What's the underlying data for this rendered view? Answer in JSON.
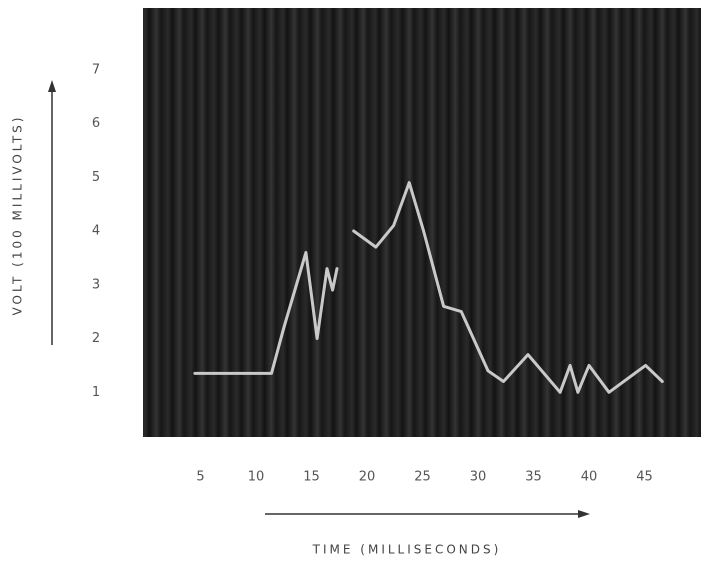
{
  "chart_data": {
    "type": "line",
    "ylabel": "VOLT (100 MILLIVOLTS)",
    "xlabel": "TIME (MILLISECONDS)",
    "x": [
      4.5,
      11.4,
      12.5,
      14.5,
      15.5,
      16.4,
      16.9,
      17.3,
      17.8,
      18.8,
      20.8,
      22.4,
      23.8,
      25.1,
      26.9,
      28.5,
      30.9,
      32.3,
      34.5,
      37.4,
      38.3,
      39.0,
      40.0,
      41.8,
      45.1,
      46.6
    ],
    "values": [
      1.35,
      1.35,
      2.2,
      3.6,
      2.0,
      3.3,
      2.9,
      3.3,
      null,
      4.0,
      3.7,
      4.1,
      4.9,
      4.0,
      2.6,
      2.5,
      1.4,
      1.2,
      1.7,
      1.0,
      1.5,
      1.0,
      1.5,
      1.0,
      1.5,
      1.2
    ],
    "color": "#dcdcdc",
    "xlim": [
      0,
      50
    ],
    "ylim": [
      0,
      8
    ],
    "xticks": [
      5,
      10,
      15,
      20,
      25,
      30,
      35,
      40,
      45
    ],
    "yticks": [
      1,
      2,
      3,
      4,
      5,
      6,
      7
    ],
    "grid": false
  }
}
